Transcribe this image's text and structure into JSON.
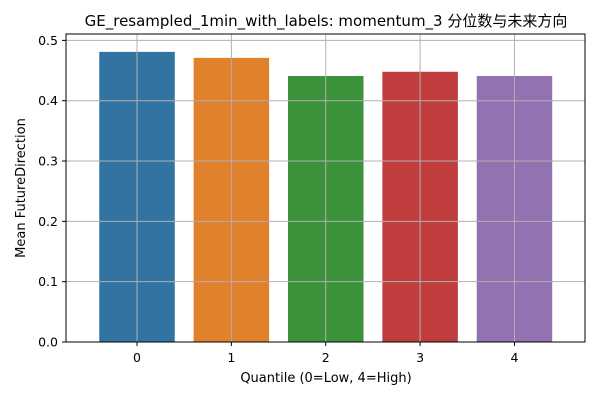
{
  "chart_data": {
    "type": "bar",
    "title": "GE_resampled_1min_with_labels: momentum_3 分位数与未来方向",
    "xlabel": "Quantile (0=Low, 4=High)",
    "ylabel": "Mean FutureDirection",
    "categories": [
      "0",
      "1",
      "2",
      "3",
      "4"
    ],
    "values": [
      0.481,
      0.471,
      0.441,
      0.448,
      0.441
    ],
    "ylim": [
      0,
      0.5
    ],
    "yticks": [
      0.0,
      0.1,
      0.2,
      0.3,
      0.4,
      0.5
    ],
    "ytick_labels": [
      "0.0",
      "0.1",
      "0.2",
      "0.3",
      "0.4",
      "0.5"
    ],
    "colors": [
      "#3274a1",
      "#e1812c",
      "#3a923a",
      "#c03d3e",
      "#9372b2"
    ],
    "grid": true,
    "legend": false
  }
}
